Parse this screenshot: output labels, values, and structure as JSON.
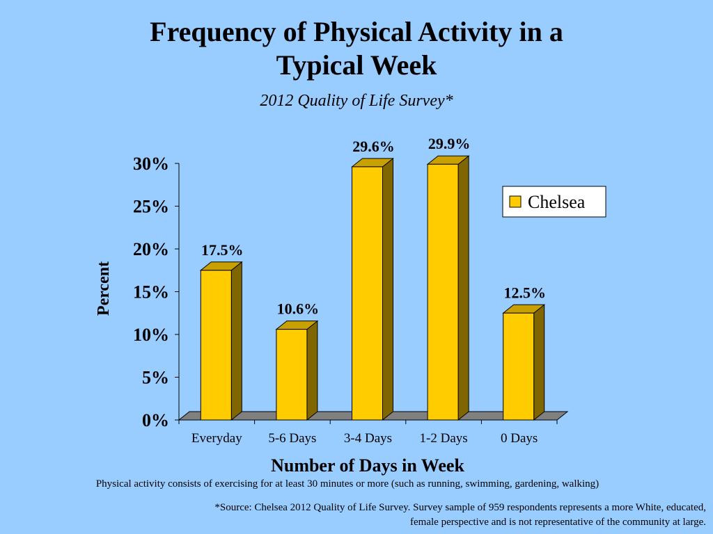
{
  "title_line1": "Frequency of Physical Activity in a",
  "title_line2": "Typical Week",
  "subtitle": "2012 Quality of Life Survey*",
  "note": "Physical activity consists of exercising for at least 30 minutes or more (such as running, swimming, gardening, walking)",
  "source_line1": "*Source: Chelsea 2012 Quality of Life Survey. Survey sample of 959 respondents represents a more White, educated,",
  "source_line2": "female perspective and is not representative of the community at large.",
  "colors": {
    "background": "#99ccff",
    "bar_front": "#ffcc00",
    "bar_side": "#806600",
    "bar_top": "#c8a000",
    "floor": "#808080"
  },
  "chart_data": {
    "type": "bar",
    "style": "3d",
    "categories": [
      "Everyday",
      "5-6 Days",
      "3-4 Days",
      "1-2 Days",
      "0 Days"
    ],
    "series": [
      {
        "name": "Chelsea",
        "values": [
          17.5,
          10.6,
          29.6,
          29.9,
          12.5
        ]
      }
    ],
    "data_labels": [
      "17.5%",
      "10.6%",
      "29.6%",
      "29.9%",
      "12.5%"
    ],
    "xlabel": "Number of Days in Week",
    "ylabel": "Percent",
    "ylim": [
      0,
      30
    ],
    "yticks": [
      "0%",
      "5%",
      "10%",
      "15%",
      "20%",
      "25%",
      "30%"
    ],
    "legend_position": "right",
    "grid": false
  }
}
